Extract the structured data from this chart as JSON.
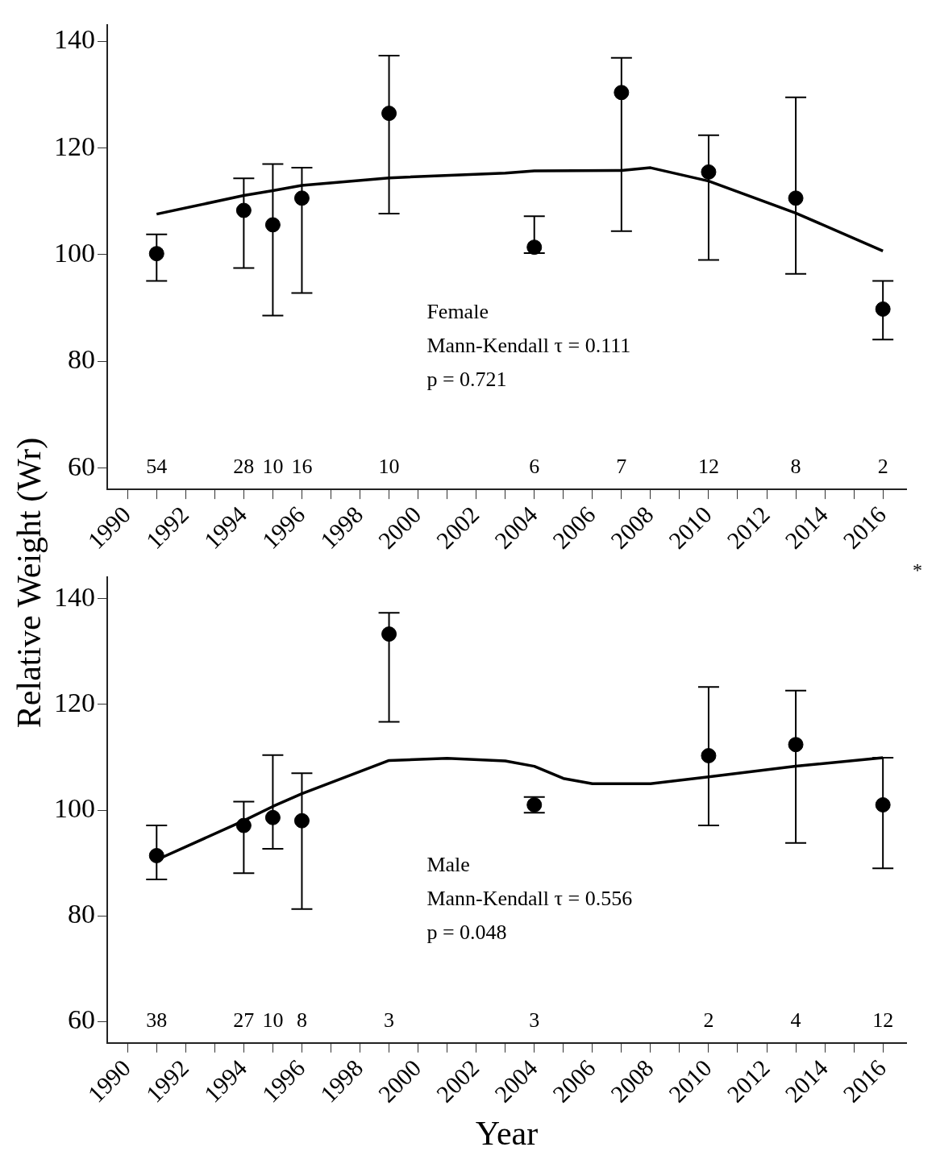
{
  "chart_data": [
    {
      "type": "scatter",
      "ylabel": "Relative Weight (Wr)",
      "xlim": [
        1989.3,
        2016.8
      ],
      "ylim": [
        56,
        143
      ],
      "xticks": [
        1990,
        {
          "value": 1991,
          "label": null
        },
        1992,
        {
          "value": 1993,
          "label": null
        },
        1994,
        {
          "value": 1995,
          "label": null
        },
        1996,
        {
          "value": 1997,
          "label": null
        },
        1998,
        {
          "value": 1999,
          "label": null
        },
        2000,
        {
          "value": 2001,
          "label": null
        },
        2002,
        {
          "value": 2003,
          "label": null
        },
        2004,
        {
          "value": 2005,
          "label": null
        },
        2006,
        {
          "value": 2007,
          "label": null
        },
        2008,
        {
          "value": 2009,
          "label": null
        },
        2010,
        {
          "value": 2011,
          "label": null
        },
        2012,
        {
          "value": 2013,
          "label": null
        },
        2014,
        {
          "value": 2015,
          "label": null
        },
        2016
      ],
      "yticks": [
        60,
        80,
        100,
        120,
        140
      ],
      "grid": false,
      "legend": false,
      "series": [
        {
          "marker": "circle",
          "color": "#000000",
          "x": [
            1991,
            1994,
            1995,
            1996,
            1999,
            2004,
            2007,
            2010,
            2013,
            2016
          ],
          "values": [
            100.2,
            108.3,
            105.6,
            110.6,
            126.5,
            101.4,
            130.4,
            115.5,
            110.6,
            89.8
          ],
          "errors": [
            [
              95.1,
              103.8
            ],
            [
              97.5,
              114.3
            ],
            [
              88.6,
              117.0
            ],
            [
              92.8,
              116.3
            ],
            [
              107.7,
              137.3
            ],
            [
              100.3,
              107.2
            ],
            [
              104.4,
              136.9
            ],
            [
              99.0,
              122.4
            ],
            [
              96.4,
              129.5
            ],
            [
              84.1,
              95.1
            ]
          ]
        },
        {
          "type": "line",
          "color": "#000000",
          "line_style": "solid",
          "x": [
            1991,
            1994,
            1995,
            1996,
            1999,
            2003,
            2004,
            2007,
            2008,
            2010,
            2013,
            2016
          ],
          "values": [
            107.6,
            111.1,
            112.0,
            113.0,
            114.4,
            115.3,
            115.7,
            115.8,
            116.3,
            113.8,
            107.8,
            100.7
          ]
        }
      ],
      "annotations": [
        "Female\nMann-Kendall τ = 0.111\np = 0.721",
        "54",
        "28",
        "10",
        "16",
        "10",
        "6",
        "7",
        "12",
        "8",
        "2"
      ]
    },
    {
      "type": "scatter",
      "xlabel": "Year",
      "xlim": [
        1989.3,
        2016.8
      ],
      "ylim": [
        56,
        144
      ],
      "xticks": [
        1990,
        {
          "value": 1991,
          "label": null
        },
        1992,
        {
          "value": 1993,
          "label": null
        },
        1994,
        {
          "value": 1995,
          "label": null
        },
        1996,
        {
          "value": 1997,
          "label": null
        },
        1998,
        {
          "value": 1999,
          "label": null
        },
        2000,
        {
          "value": 2001,
          "label": null
        },
        2002,
        {
          "value": 2003,
          "label": null
        },
        2004,
        {
          "value": 2005,
          "label": null
        },
        2006,
        {
          "value": 2007,
          "label": null
        },
        2008,
        {
          "value": 2009,
          "label": null
        },
        2010,
        {
          "value": 2011,
          "label": null
        },
        2012,
        {
          "value": 2013,
          "label": null
        },
        2014,
        {
          "value": 2015,
          "label": null
        },
        2016
      ],
      "yticks": [
        60,
        80,
        100,
        120,
        140
      ],
      "grid": false,
      "legend": false,
      "series": [
        {
          "marker": "circle",
          "color": "#000000",
          "x": [
            1991,
            1994,
            1995,
            1996,
            1999,
            2004,
            2010,
            2013,
            2016
          ],
          "values": [
            91.4,
            97.1,
            98.6,
            98.0,
            133.3,
            101.0,
            110.3,
            112.4,
            101.0
          ],
          "errors": [
            [
              86.9,
              97.1
            ],
            [
              88.1,
              101.6
            ],
            [
              92.7,
              110.4
            ],
            [
              81.3,
              107.0
            ],
            [
              116.7,
              137.3
            ],
            [
              99.5,
              102.5
            ],
            [
              97.1,
              123.3
            ],
            [
              93.8,
              122.6
            ],
            [
              89.0,
              109.9
            ]
          ]
        },
        {
          "type": "line",
          "color": "#000000",
          "line_style": "solid",
          "x": [
            1991,
            1994,
            1995,
            1996,
            1999,
            2001,
            2003,
            2004,
            2005,
            2006,
            2008,
            2010,
            2013,
            2016
          ],
          "values": [
            90.6,
            98.0,
            100.7,
            103.1,
            109.4,
            109.8,
            109.3,
            108.3,
            106.0,
            105.0,
            105.0,
            106.3,
            108.3,
            109.9
          ]
        }
      ],
      "annotations": [
        "Male\nMann-Kendall τ = 0.556\np = 0.048",
        "*",
        "38",
        "27",
        "10",
        "8",
        "3",
        "3",
        "2",
        "4",
        "12"
      ]
    }
  ]
}
